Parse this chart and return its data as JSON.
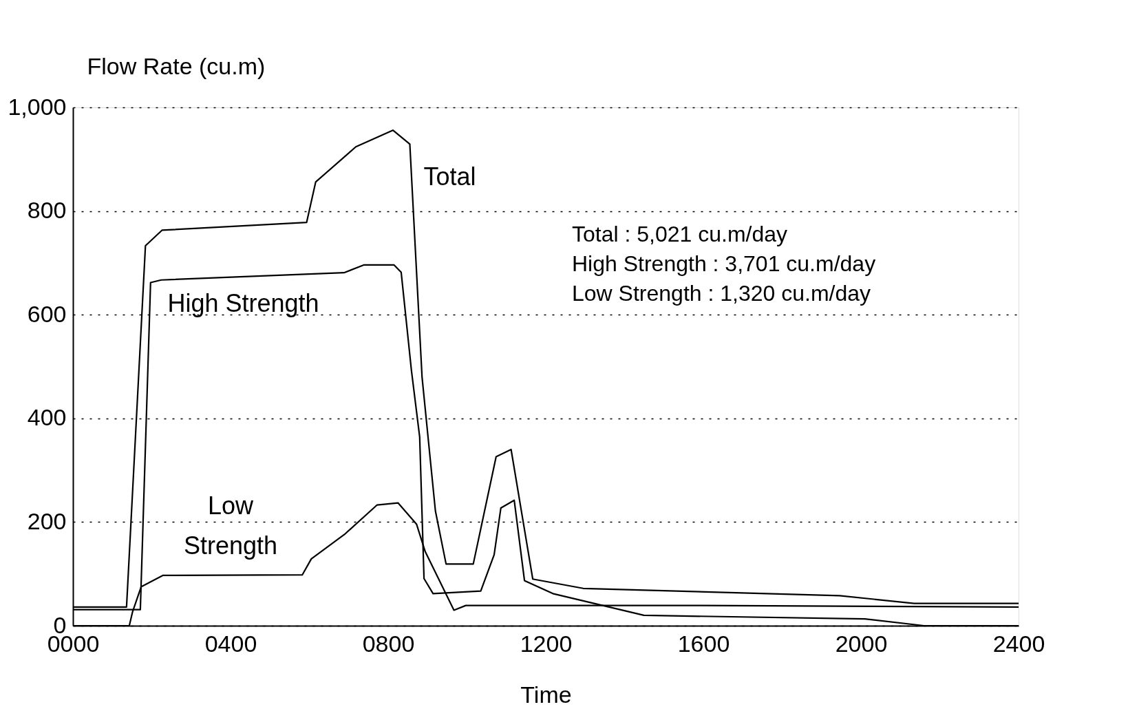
{
  "chart_data": {
    "type": "line",
    "ylabel": "Flow Rate (cu.m)",
    "xlabel": "Time",
    "annotations": [
      "Total : 5,021 cu.m/day",
      "High Strength : 3,701 cu.m/day",
      "Low Strength : 1,320 cu.m/day"
    ],
    "series": [
      {
        "name": "Total",
        "color": "#000000",
        "x": [
          0,
          136,
          184,
          226,
          593,
          616,
          718,
          812,
          855,
          886,
          920,
          947,
          1016,
          1074,
          1112,
          1167,
          1295,
          1946,
          2135,
          2400
        ],
        "values": [
          36,
          36,
          733,
          763,
          778,
          856,
          924,
          956,
          929,
          480,
          221,
          119,
          119,
          326,
          340,
          90,
          72,
          58,
          43,
          43
        ]
      },
      {
        "name": "High Strength",
        "color": "#000000",
        "x": [
          0,
          171,
          197,
          224,
          688,
          738,
          815,
          833,
          859,
          880,
          891,
          914,
          1035,
          1069,
          1086,
          1120,
          1146,
          1218,
          1449,
          2010,
          2160,
          2400
        ],
        "values": [
          31,
          31,
          662,
          667,
          681,
          696,
          696,
          682,
          493,
          364,
          91,
          62,
          67,
          137,
          227,
          242,
          87,
          62,
          20,
          13,
          0,
          0
        ]
      },
      {
        "name": "Low Strength",
        "color": "#000000",
        "x": [
          0,
          143,
          151,
          173,
          228,
          582,
          605,
          689,
          772,
          825,
          872,
          894,
          967,
          997,
          1594,
          2400
        ],
        "values": [
          0,
          0,
          26,
          75,
          97,
          98,
          129,
          176,
          233,
          237,
          196,
          143,
          30,
          39,
          39,
          36
        ]
      }
    ],
    "xlim": [
      0,
      2400
    ],
    "xticks": [
      {
        "value": 0,
        "label": "0000"
      },
      {
        "value": 400,
        "label": "0400"
      },
      {
        "value": 800,
        "label": "0800"
      },
      1200,
      1600,
      2000,
      2400
    ],
    "ylim": [
      0,
      1000
    ],
    "yticks": [
      0,
      200,
      400,
      600,
      800,
      {
        "value": 1000,
        "label": "1,000"
      }
    ],
    "grid": "y",
    "marker": "none",
    "line_style": "solid"
  }
}
